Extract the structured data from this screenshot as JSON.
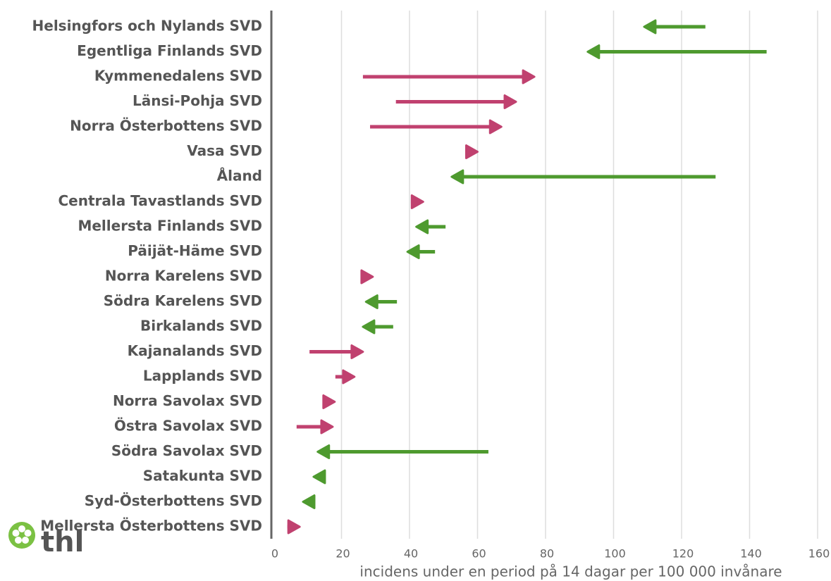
{
  "chart_data": {
    "type": "arrow",
    "categories": [
      "Helsingfors och Nylands SVD",
      "Egentliga Finlands SVD",
      "Kymmenedalens SVD",
      "Länsi-Pohja SVD",
      "Norra Österbottens SVD",
      "Vasa SVD",
      "Åland",
      "Centrala Tavastlands SVD",
      "Mellersta Finlands SVD",
      "Päijät-Häme SVD",
      "Norra Karelens SVD",
      "Södra Karelens SVD",
      "Birkalands SVD",
      "Kajanalands SVD",
      "Lapplands SVD",
      "Norra Savolax SVD",
      "Östra Savolax SVD",
      "Södra Savolax SVD",
      "Satakunta SVD",
      "Syd-Österbottens SVD",
      "Mellersta Österbottens SVD"
    ],
    "start_values": [
      127,
      145,
      26.3,
      36,
      28.4,
      57,
      130,
      40.4,
      50.6,
      47.5,
      25.7,
      36.3,
      35.2,
      10.6,
      18.2,
      14.5,
      6.8,
      63.2,
      15.3,
      12.2,
      4.1
    ],
    "end_values": [
      109,
      92.4,
      76.7,
      71.3,
      67,
      60,
      52.4,
      44,
      42,
      39.4,
      29.2,
      27.2,
      26.3,
      26.3,
      23.8,
      18,
      17.4,
      13,
      11.8,
      8.7,
      7.7
    ],
    "increase_color": "#c0416f",
    "decrease_color": "#4e9a2f",
    "xlabel": "incidens under en period på 14 dagar per 100 000 invånare",
    "xlim": [
      0,
      160
    ],
    "xticks": [
      0,
      20,
      40,
      60,
      80,
      100,
      120,
      140,
      160
    ],
    "grid": true
  },
  "logo": "thl"
}
